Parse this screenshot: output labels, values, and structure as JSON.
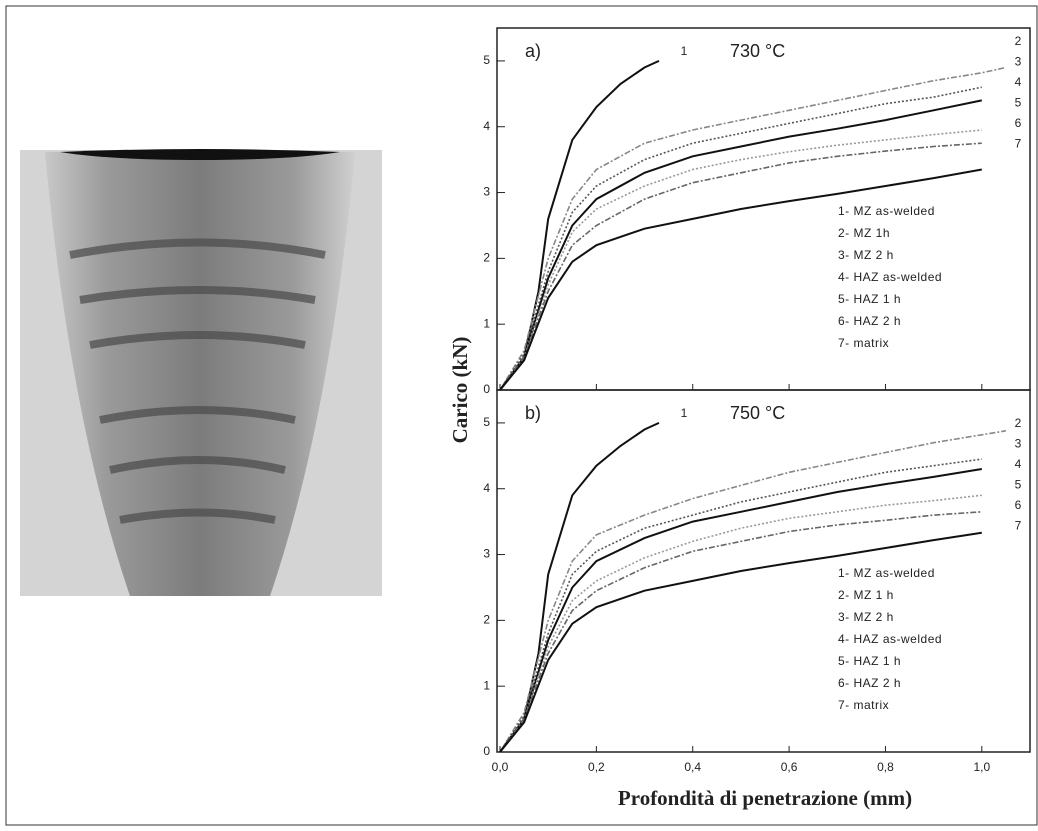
{
  "chart_data": [
    {
      "type": "line",
      "panel": "a)",
      "annotation": "730 °C",
      "y_label": "Carico (kN)",
      "xlim": [
        0,
        1.1
      ],
      "ylim": [
        0,
        5.5
      ],
      "yticks": [
        0,
        1,
        2,
        3,
        4,
        5
      ],
      "series": [
        {
          "name": "1- MZ as-welded",
          "label": "1",
          "color": "#111111",
          "style": "solid",
          "x": [
            0,
            0.05,
            0.08,
            0.1,
            0.15,
            0.2,
            0.25,
            0.3,
            0.33
          ],
          "values": [
            0,
            0.5,
            1.5,
            2.6,
            3.8,
            4.3,
            4.65,
            4.9,
            5.0
          ]
        },
        {
          "name": "2- MZ 1h",
          "label": "2",
          "color": "#888888",
          "style": "dashdot",
          "x": [
            0,
            0.05,
            0.1,
            0.15,
            0.2,
            0.3,
            0.4,
            0.5,
            0.6,
            0.7,
            0.8,
            0.9,
            1.0,
            1.05
          ],
          "values": [
            0,
            0.6,
            2.0,
            2.9,
            3.35,
            3.75,
            3.95,
            4.1,
            4.25,
            4.4,
            4.55,
            4.7,
            4.82,
            4.9
          ]
        },
        {
          "name": "3- MZ 2 h",
          "label": "3",
          "color": "#555555",
          "style": "dotted",
          "x": [
            0,
            0.05,
            0.1,
            0.15,
            0.2,
            0.3,
            0.4,
            0.5,
            0.6,
            0.7,
            0.8,
            0.9,
            1.0
          ],
          "values": [
            0,
            0.55,
            1.8,
            2.7,
            3.1,
            3.5,
            3.75,
            3.9,
            4.05,
            4.2,
            4.35,
            4.45,
            4.6
          ]
        },
        {
          "name": "4- HAZ as-welded",
          "label": "4",
          "color": "#111111",
          "style": "solid",
          "x": [
            0,
            0.05,
            0.1,
            0.15,
            0.2,
            0.3,
            0.4,
            0.5,
            0.6,
            0.7,
            0.8,
            0.9,
            1.0
          ],
          "values": [
            0,
            0.5,
            1.7,
            2.5,
            2.9,
            3.3,
            3.55,
            3.7,
            3.85,
            3.97,
            4.1,
            4.25,
            4.4
          ]
        },
        {
          "name": "5- HAZ 1 h",
          "label": "5",
          "color": "#999999",
          "style": "dotted",
          "x": [
            0,
            0.05,
            0.1,
            0.15,
            0.2,
            0.3,
            0.4,
            0.5,
            0.6,
            0.7,
            0.8,
            0.9,
            1.0
          ],
          "values": [
            0,
            0.5,
            1.6,
            2.4,
            2.75,
            3.1,
            3.35,
            3.5,
            3.62,
            3.72,
            3.8,
            3.88,
            3.95
          ]
        },
        {
          "name": "6- HAZ 2 h",
          "label": "6",
          "color": "#666666",
          "style": "dashdot",
          "x": [
            0,
            0.05,
            0.1,
            0.15,
            0.2,
            0.3,
            0.4,
            0.5,
            0.6,
            0.7,
            0.8,
            0.9,
            1.0
          ],
          "values": [
            0,
            0.5,
            1.5,
            2.2,
            2.5,
            2.9,
            3.15,
            3.3,
            3.45,
            3.55,
            3.63,
            3.7,
            3.75
          ]
        },
        {
          "name": "7- matrix",
          "label": "7",
          "color": "#111111",
          "style": "solid",
          "x": [
            0,
            0.05,
            0.1,
            0.15,
            0.2,
            0.3,
            0.4,
            0.5,
            0.6,
            0.7,
            0.8,
            0.9,
            1.0
          ],
          "values": [
            0,
            0.45,
            1.4,
            1.95,
            2.2,
            2.45,
            2.6,
            2.75,
            2.87,
            2.98,
            3.1,
            3.22,
            3.35
          ]
        }
      ]
    },
    {
      "type": "line",
      "panel": "b)",
      "annotation": "750 °C",
      "x_label": "Profondità di penetrazione (mm)",
      "xlim": [
        0,
        1.1
      ],
      "ylim": [
        0,
        5.5
      ],
      "yticks": [
        0,
        1,
        2,
        3,
        4,
        5
      ],
      "xticks": [
        {
          "value": 0,
          "label": "0,0"
        },
        {
          "value": 0.2,
          "label": "0,2"
        },
        {
          "value": 0.4,
          "label": "0,4"
        },
        {
          "value": 0.6,
          "label": "0,6"
        },
        {
          "value": 0.8,
          "label": "0,8"
        },
        {
          "value": 1.0,
          "label": "1,0"
        }
      ],
      "series": [
        {
          "name": "1- MZ as-welded",
          "label": "1",
          "color": "#111111",
          "style": "solid",
          "x": [
            0,
            0.05,
            0.08,
            0.1,
            0.15,
            0.2,
            0.25,
            0.3,
            0.33
          ],
          "values": [
            0,
            0.5,
            1.5,
            2.7,
            3.9,
            4.35,
            4.65,
            4.9,
            5.0
          ]
        },
        {
          "name": "2- MZ 1 h",
          "label": "2",
          "color": "#888888",
          "style": "dashdot",
          "x": [
            0,
            0.05,
            0.1,
            0.15,
            0.2,
            0.3,
            0.4,
            0.5,
            0.6,
            0.7,
            0.8,
            0.9,
            1.0,
            1.05
          ],
          "values": [
            0,
            0.6,
            2.0,
            2.9,
            3.3,
            3.6,
            3.85,
            4.05,
            4.25,
            4.4,
            4.55,
            4.7,
            4.82,
            4.88
          ]
        },
        {
          "name": "3- MZ 2 h",
          "label": "3",
          "color": "#555555",
          "style": "dotted",
          "x": [
            0,
            0.05,
            0.1,
            0.15,
            0.2,
            0.3,
            0.4,
            0.5,
            0.6,
            0.7,
            0.8,
            0.9,
            1.0
          ],
          "values": [
            0,
            0.55,
            1.8,
            2.7,
            3.05,
            3.4,
            3.6,
            3.8,
            3.95,
            4.1,
            4.25,
            4.35,
            4.45
          ]
        },
        {
          "name": "4- HAZ as-welded",
          "label": "4",
          "color": "#111111",
          "style": "solid",
          "x": [
            0,
            0.05,
            0.1,
            0.15,
            0.2,
            0.3,
            0.4,
            0.5,
            0.6,
            0.7,
            0.8,
            0.9,
            1.0
          ],
          "values": [
            0,
            0.5,
            1.7,
            2.5,
            2.9,
            3.25,
            3.5,
            3.65,
            3.8,
            3.95,
            4.07,
            4.18,
            4.3
          ]
        },
        {
          "name": "5- HAZ 1 h",
          "label": "5",
          "color": "#999999",
          "style": "dotted",
          "x": [
            0,
            0.05,
            0.1,
            0.15,
            0.2,
            0.3,
            0.4,
            0.5,
            0.6,
            0.7,
            0.8,
            0.9,
            1.0
          ],
          "values": [
            0,
            0.5,
            1.6,
            2.3,
            2.6,
            2.95,
            3.2,
            3.4,
            3.55,
            3.65,
            3.75,
            3.82,
            3.9
          ]
        },
        {
          "name": "6- HAZ 2 h",
          "label": "6",
          "color": "#666666",
          "style": "dashdot",
          "x": [
            0,
            0.05,
            0.1,
            0.15,
            0.2,
            0.3,
            0.4,
            0.5,
            0.6,
            0.7,
            0.8,
            0.9,
            1.0
          ],
          "values": [
            0,
            0.5,
            1.5,
            2.15,
            2.45,
            2.8,
            3.05,
            3.2,
            3.35,
            3.45,
            3.52,
            3.6,
            3.65
          ]
        },
        {
          "name": "7- matrix",
          "label": "7",
          "color": "#111111",
          "style": "solid",
          "x": [
            0,
            0.05,
            0.1,
            0.15,
            0.2,
            0.3,
            0.4,
            0.5,
            0.6,
            0.7,
            0.8,
            0.9,
            1.0
          ],
          "values": [
            0,
            0.45,
            1.4,
            1.95,
            2.2,
            2.45,
            2.6,
            2.75,
            2.87,
            2.98,
            3.1,
            3.22,
            3.33
          ]
        }
      ]
    }
  ]
}
